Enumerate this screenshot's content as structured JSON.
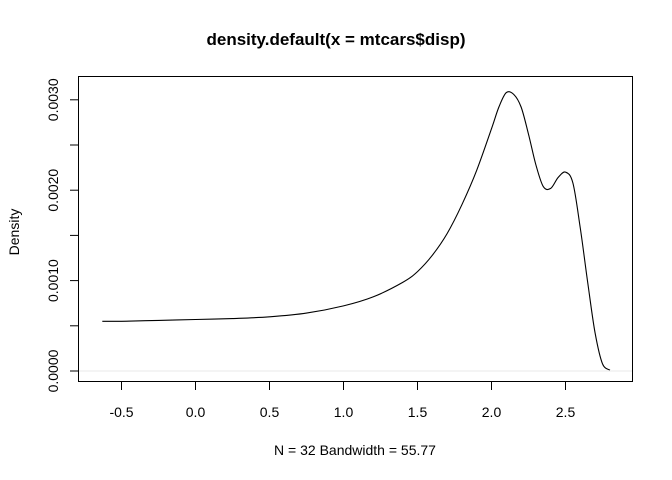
{
  "chart_data": {
    "type": "line",
    "title": "density.default(x = mtcars$disp)",
    "xlabel": "N = 32   Bandwidth = 55.77",
    "ylabel": "Density",
    "xlim": [
      -0.78,
      2.93
    ],
    "ylim": [
      -0.00012,
      0.00325
    ],
    "x_ticks": [
      -0.5,
      0.0,
      0.5,
      1.0,
      1.5,
      2.0,
      2.5
    ],
    "x_tick_labels": [
      "-0.5",
      "0.0",
      "0.5",
      "1.0",
      "1.5",
      "2.0",
      "2.5"
    ],
    "y_ticks": [
      0.0,
      0.0005,
      0.001,
      0.0015,
      0.002,
      0.0025,
      0.003
    ],
    "y_tick_labels": [
      "0.0000",
      "0.0010",
      "0.0020",
      "0.0030"
    ],
    "y_labeled_ticks": [
      0.0,
      0.001,
      0.002,
      0.003
    ],
    "grid": false,
    "legend": null,
    "series": [
      {
        "name": "density",
        "color": "#000000",
        "x": [
          -0.63,
          -0.5,
          -0.25,
          0.0,
          0.25,
          0.5,
          0.75,
          1.0,
          1.2,
          1.4,
          1.5,
          1.6,
          1.7,
          1.8,
          1.9,
          2.0,
          2.05,
          2.1,
          2.15,
          2.2,
          2.25,
          2.3,
          2.35,
          2.4,
          2.45,
          2.5,
          2.55,
          2.6,
          2.65,
          2.7,
          2.75,
          2.8
        ],
        "y": [
          0.00055,
          0.00055,
          0.00056,
          0.00057,
          0.00058,
          0.0006,
          0.00064,
          0.00072,
          0.00082,
          0.00098,
          0.0011,
          0.00128,
          0.00152,
          0.00184,
          0.00222,
          0.00268,
          0.00292,
          0.00308,
          0.00306,
          0.00292,
          0.00262,
          0.00228,
          0.00204,
          0.00202,
          0.00214,
          0.0022,
          0.00208,
          0.00158,
          0.00098,
          0.00042,
          8e-05,
          1e-05
        ]
      }
    ]
  }
}
